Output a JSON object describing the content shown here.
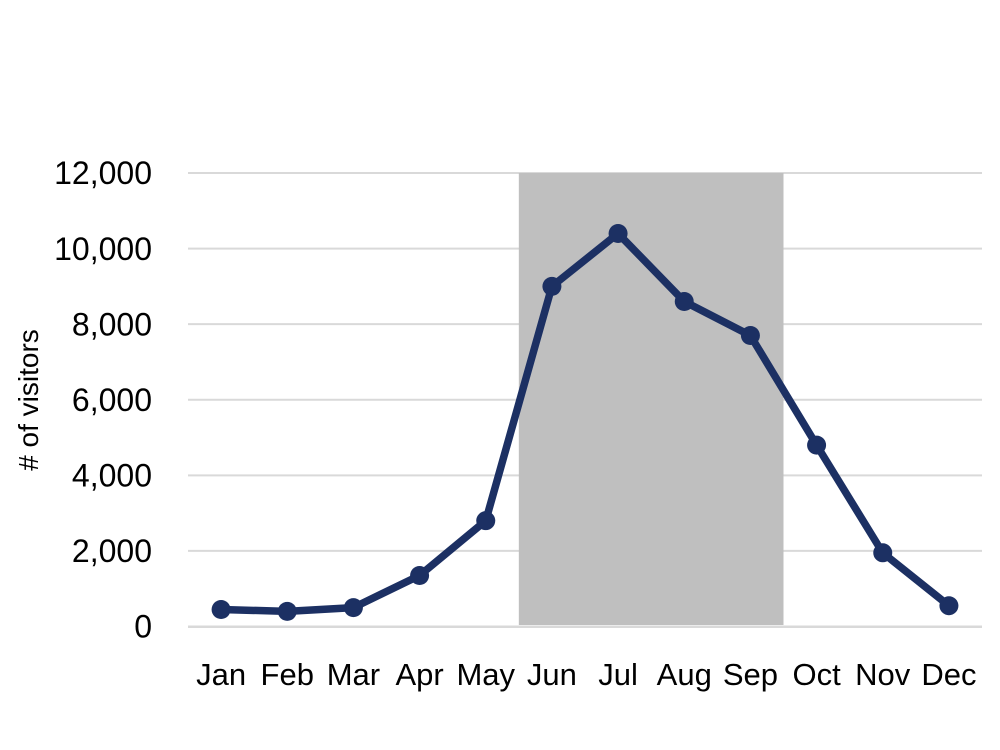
{
  "chart_data": {
    "type": "line",
    "title": "",
    "xlabel": "",
    "ylabel": "# of visitors",
    "categories": [
      "Jan",
      "Feb",
      "Mar",
      "Apr",
      "May",
      "Jun",
      "Jul",
      "Aug",
      "Sep",
      "Oct",
      "Nov",
      "Dec"
    ],
    "series": [
      {
        "name": "visitors",
        "values": [
          450,
          400,
          500,
          1350,
          2800,
          9000,
          10400,
          8600,
          7700,
          4800,
          1950,
          550
        ]
      }
    ],
    "ylim": [
      0,
      12000
    ],
    "y_tick_interval": 2000,
    "y_ticks": [
      {
        "value": 0,
        "label": "0"
      },
      {
        "value": 2000,
        "label": "2,000"
      },
      {
        "value": 4000,
        "label": "4,000"
      },
      {
        "value": 6000,
        "label": "6,000"
      },
      {
        "value": 8000,
        "label": "8,000"
      },
      {
        "value": 10000,
        "label": "10,000"
      },
      {
        "value": 12000,
        "label": "12,000"
      }
    ],
    "grid": "horizontal",
    "legend": "none",
    "highlight_band": {
      "from_category": "Jun",
      "to_category": "Sep",
      "color": "#bfbfbf"
    },
    "colors": {
      "line": "#1c3063",
      "marker": "#1c3063",
      "gridline": "#d9d9d9",
      "text": "#000000",
      "background": "#ffffff"
    }
  }
}
